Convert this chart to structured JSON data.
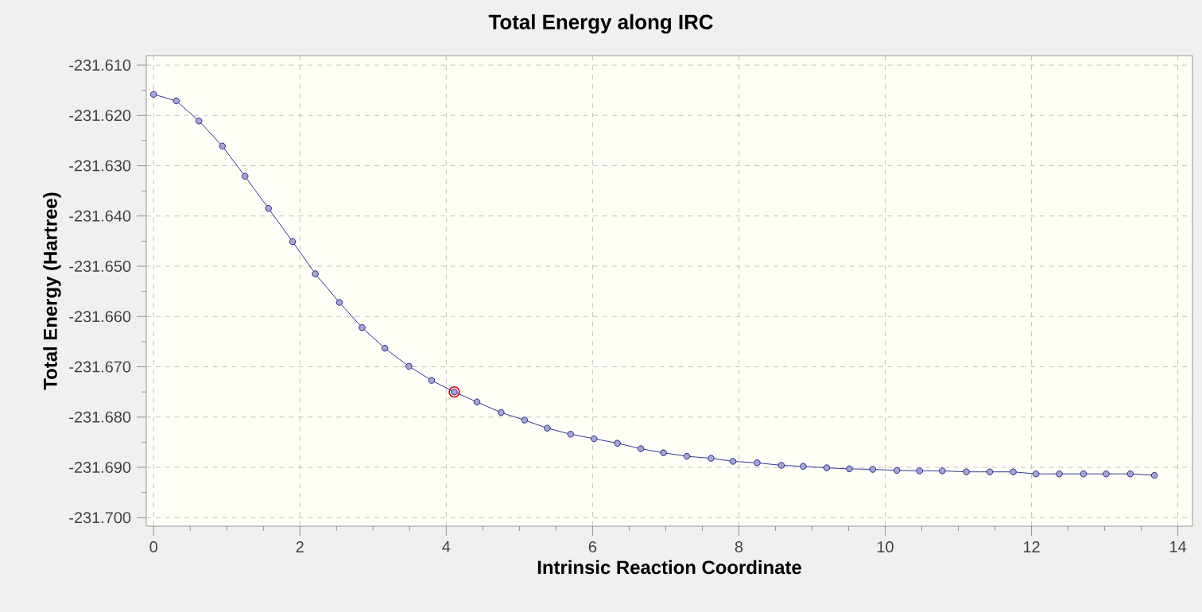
{
  "chart_data": {
    "type": "line",
    "title": "Total Energy along IRC",
    "xlabel": "Intrinsic Reaction Coordinate",
    "ylabel": "Total Energy (Hartree)",
    "x": [
      0,
      0.31,
      0.62,
      0.94,
      1.25,
      1.57,
      1.9,
      2.21,
      2.54,
      2.85,
      3.16,
      3.49,
      3.8,
      4.11,
      4.42,
      4.75,
      5.07,
      5.38,
      5.7,
      6.02,
      6.34,
      6.66,
      6.97,
      7.29,
      7.62,
      7.92,
      8.25,
      8.58,
      8.88,
      9.2,
      9.51,
      9.83,
      10.16,
      10.47,
      10.78,
      11.11,
      11.43,
      11.75,
      12.06,
      12.38,
      12.71,
      13.02,
      13.35,
      13.68
    ],
    "series": [
      {
        "color": "#000080",
        "values": [
          -231.6158,
          -231.6171,
          -231.6211,
          -231.6261,
          -231.6321,
          -231.6385,
          -231.6451,
          -231.6515,
          -231.6572,
          -231.6622,
          -231.6663,
          -231.6699,
          -231.6727,
          -231.675,
          -231.677,
          -231.6791,
          -231.6806,
          -231.6822,
          -231.6834,
          -231.6843,
          -231.6852,
          -231.6863,
          -231.6871,
          -231.6878,
          -231.6882,
          -231.6888,
          -231.6891,
          -231.6896,
          -231.6898,
          -231.6901,
          -231.6903,
          -231.6904,
          -231.6906,
          -231.6907,
          -231.6907,
          -231.6909,
          -231.6909,
          -231.6909,
          -231.6913,
          -231.6913,
          -231.6913,
          -231.6913,
          -231.6913,
          -231.6916
        ]
      },
      {
        "type": "scatter",
        "color": "#e00000",
        "x": [
          4.11
        ],
        "values": [
          -231.675
        ]
      }
    ],
    "xlim": [
      -0.1,
      14.2
    ],
    "ylim": [
      -231.7017,
      -231.6081
    ],
    "xticks": [
      0,
      {
        "value": 0.5,
        "label": null
      },
      {
        "value": 1,
        "label": null
      },
      {
        "value": 1.5,
        "label": null
      },
      2,
      {
        "value": 2.5,
        "label": null
      },
      {
        "value": 3,
        "label": null
      },
      {
        "value": 3.5,
        "label": null
      },
      4,
      {
        "value": 4.5,
        "label": null
      },
      {
        "value": 5,
        "label": null
      },
      {
        "value": 5.5,
        "label": null
      },
      6,
      {
        "value": 6.5,
        "label": null
      },
      {
        "value": 7,
        "label": null
      },
      {
        "value": 7.5,
        "label": null
      },
      8,
      {
        "value": 8.5,
        "label": null
      },
      {
        "value": 9,
        "label": null
      },
      {
        "value": 9.5,
        "label": null
      },
      10,
      {
        "value": 10.5,
        "label": null
      },
      {
        "value": 11,
        "label": null
      },
      {
        "value": 11.5,
        "label": null
      },
      12,
      {
        "value": 12.5,
        "label": null
      },
      {
        "value": 13,
        "label": null
      },
      {
        "value": 13.5,
        "label": null
      },
      14
    ],
    "yticks": [
      {
        "value": -231.61,
        "label": "-231.610"
      },
      {
        "value": -231.615,
        "label": null
      },
      {
        "value": -231.62,
        "label": "-231.620"
      },
      {
        "value": -231.625,
        "label": null
      },
      {
        "value": -231.63,
        "label": "-231.630"
      },
      {
        "value": -231.635,
        "label": null
      },
      {
        "value": -231.64,
        "label": "-231.640"
      },
      {
        "value": -231.645,
        "label": null
      },
      {
        "value": -231.65,
        "label": "-231.650"
      },
      {
        "value": -231.655,
        "label": null
      },
      {
        "value": -231.66,
        "label": "-231.660"
      },
      {
        "value": -231.665,
        "label": null
      },
      {
        "value": -231.67,
        "label": "-231.670"
      },
      {
        "value": -231.675,
        "label": null
      },
      {
        "value": -231.68,
        "label": "-231.680"
      },
      {
        "value": -231.685,
        "label": null
      },
      {
        "value": -231.69,
        "label": "-231.690"
      },
      {
        "value": -231.695,
        "label": null
      },
      {
        "value": -231.7,
        "label": "-231.700"
      }
    ],
    "grid": true,
    "marker": "circle"
  }
}
